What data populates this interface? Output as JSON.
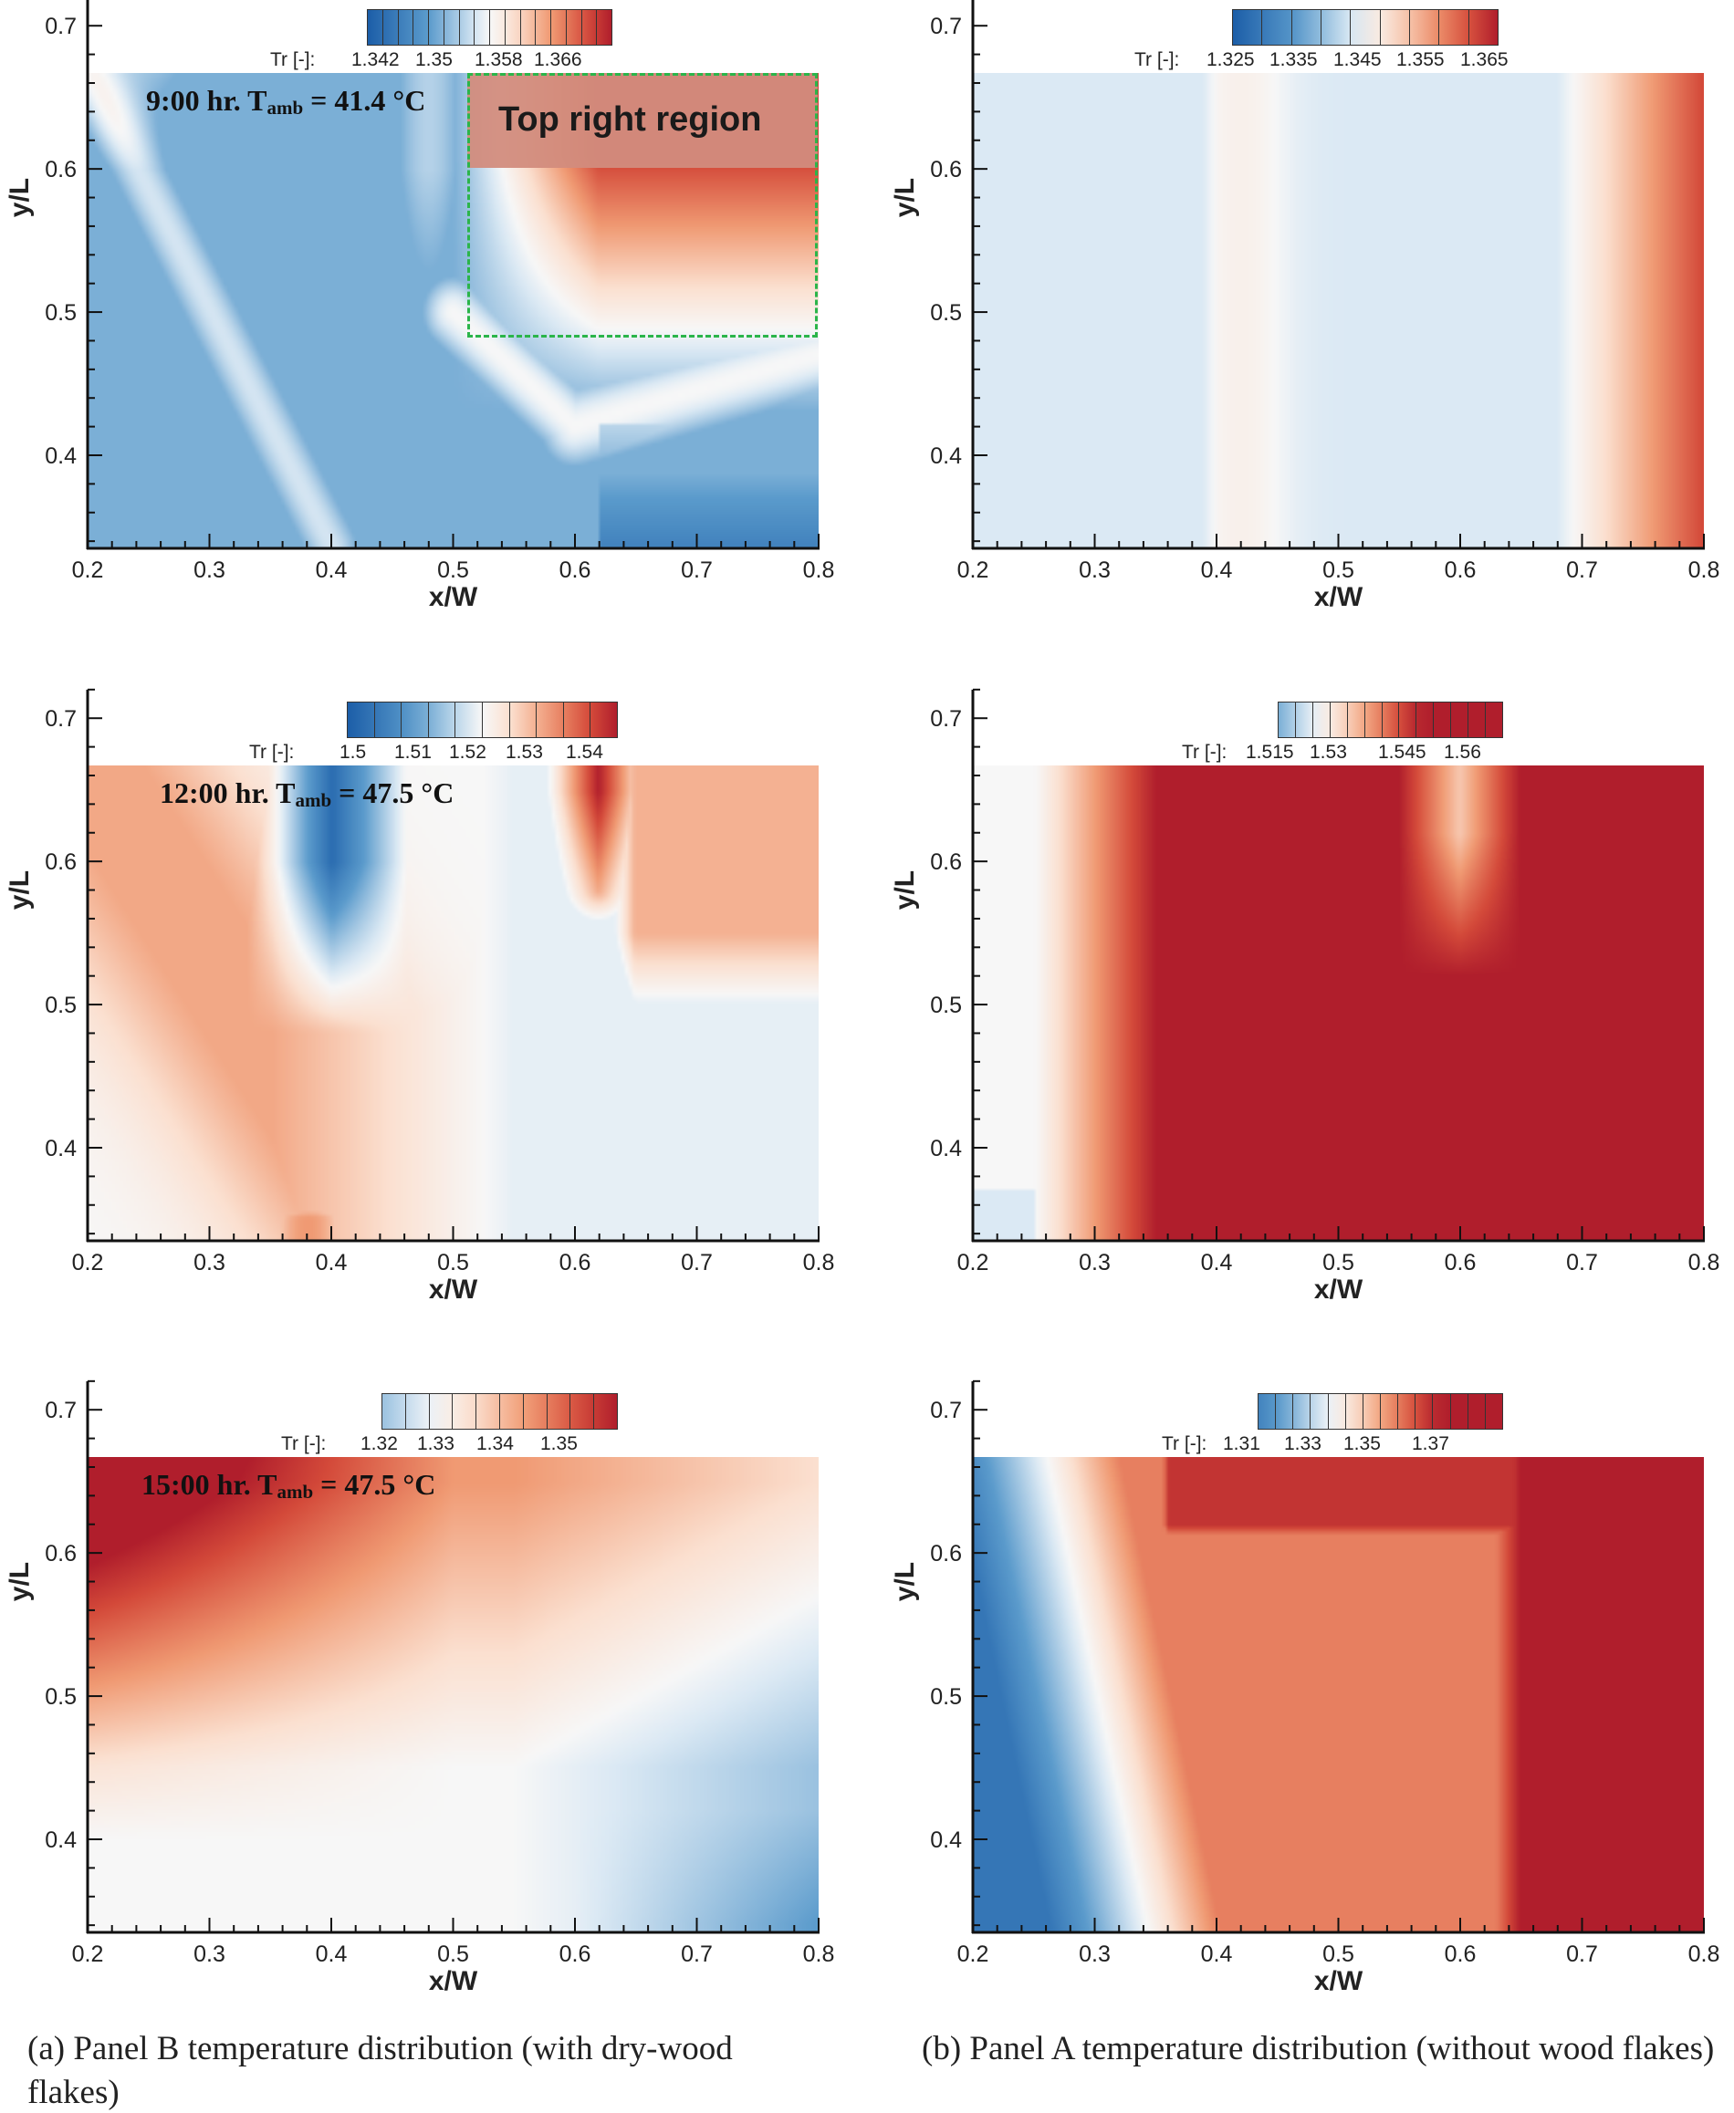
{
  "chart_data": [
    {
      "type": "heatmap",
      "panel": "a",
      "row": 1,
      "title": "9:00 hr. T_amb = 41.4 °C",
      "title_main": "9:00 hr. T",
      "title_sub": "amb",
      "title_tail": " = 41.4 °C",
      "xlabel": "x/W",
      "ylabel": "y/L",
      "xlim": [
        0.2,
        0.8
      ],
      "ylim": [
        0.335,
        0.667
      ],
      "xticks": [
        "0.2",
        "0.3",
        "0.4",
        "0.5",
        "0.6",
        "0.7",
        "0.8"
      ],
      "yticks": [
        "0.4",
        "0.5",
        "0.6",
        "0.7"
      ],
      "colorbar": {
        "label": "Tr [-]:",
        "ticks": [
          "1.342",
          "1.35",
          "1.358",
          "1.366"
        ],
        "levels": 16
      },
      "annotation": "Top right region",
      "colormap": [
        "#1c5ea8",
        "#f7f7f7",
        "#b01e2c"
      ]
    },
    {
      "type": "heatmap",
      "panel": "b",
      "row": 1,
      "title": "",
      "xlabel": "x/W",
      "ylabel": "y/L",
      "xlim": [
        0.2,
        0.8
      ],
      "ylim": [
        0.335,
        0.667
      ],
      "xticks": [
        "0.2",
        "0.3",
        "0.4",
        "0.5",
        "0.6",
        "0.7",
        "0.8"
      ],
      "yticks": [
        "0.4",
        "0.5",
        "0.6",
        "0.7"
      ],
      "colorbar": {
        "label": "Tr [-]:",
        "ticks": [
          "1.325",
          "1.335",
          "1.345",
          "1.355",
          "1.365"
        ],
        "levels": 9
      }
    },
    {
      "type": "heatmap",
      "panel": "a",
      "row": 2,
      "title": "12:00 hr. T_amb = 47.5 °C",
      "title_main": "12:00 hr. T",
      "title_sub": "amb",
      "title_tail": " = 47.5 °C",
      "xlabel": "x/W",
      "ylabel": "y/L",
      "xlim": [
        0.2,
        0.8
      ],
      "ylim": [
        0.335,
        0.667
      ],
      "xticks": [
        "0.2",
        "0.3",
        "0.4",
        "0.5",
        "0.6",
        "0.7",
        "0.8"
      ],
      "yticks": [
        "0.4",
        "0.5",
        "0.6",
        "0.7"
      ],
      "colorbar": {
        "label": "Tr [-]:",
        "ticks": [
          "1.5",
          "1.51",
          "1.52",
          "1.53",
          "1.54"
        ],
        "levels": 10
      }
    },
    {
      "type": "heatmap",
      "panel": "b",
      "row": 2,
      "title": "",
      "xlabel": "x/W",
      "ylabel": "y/L",
      "xlim": [
        0.2,
        0.8
      ],
      "ylim": [
        0.335,
        0.667
      ],
      "xticks": [
        "0.2",
        "0.3",
        "0.4",
        "0.5",
        "0.6",
        "0.7",
        "0.8"
      ],
      "yticks": [
        "0.4",
        "0.5",
        "0.6",
        "0.7"
      ],
      "colorbar": {
        "label": "Tr [-]:",
        "ticks": [
          "1.515",
          "1.53",
          "1.545",
          "1.56"
        ],
        "levels": 13
      }
    },
    {
      "type": "heatmap",
      "panel": "a",
      "row": 3,
      "title": "15:00 hr. T_amb = 47.5 °C",
      "title_main": "15:00 hr. T",
      "title_sub": "amb",
      "title_tail": " = 47.5 °C",
      "xlabel": "x/W",
      "ylabel": "y/L",
      "xlim": [
        0.2,
        0.8
      ],
      "ylim": [
        0.335,
        0.667
      ],
      "xticks": [
        "0.2",
        "0.3",
        "0.4",
        "0.5",
        "0.6",
        "0.7",
        "0.8"
      ],
      "yticks": [
        "0.4",
        "0.5",
        "0.6",
        "0.7"
      ],
      "colorbar": {
        "label": "Tr [-]:",
        "ticks": [
          "1.32",
          "1.33",
          "1.34",
          "1.35"
        ],
        "levels": 10
      }
    },
    {
      "type": "heatmap",
      "panel": "b",
      "row": 3,
      "title": "",
      "xlabel": "x/W",
      "ylabel": "y/L",
      "xlim": [
        0.2,
        0.8
      ],
      "ylim": [
        0.335,
        0.667
      ],
      "xticks": [
        "0.2",
        "0.3",
        "0.4",
        "0.5",
        "0.6",
        "0.7",
        "0.8"
      ],
      "yticks": [
        "0.4",
        "0.5",
        "0.6",
        "0.7"
      ],
      "colorbar": {
        "label": "Tr [-]:",
        "ticks": [
          "1.31",
          "1.33",
          "1.35",
          "1.37"
        ],
        "levels": 14
      }
    }
  ],
  "captions": {
    "a": "(a) Panel B temperature distribution (with dry-wood flakes)",
    "b": "(b) Panel A temperature distribution (without wood flakes)"
  }
}
